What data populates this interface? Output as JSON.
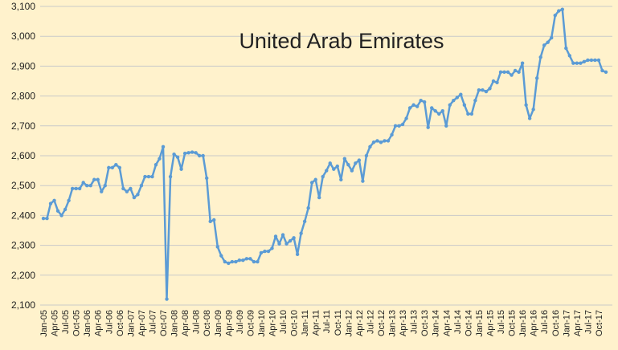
{
  "chart_data": {
    "type": "line",
    "title": "United Arab Emirates",
    "categories": [
      "Jan-05",
      null,
      null,
      "Apr-05",
      null,
      null,
      "Jul-05",
      null,
      null,
      "Oct-05",
      null,
      null,
      "Jan-06",
      null,
      null,
      "Apr-06",
      null,
      null,
      "Jul-06",
      null,
      null,
      "Oct-06",
      null,
      null,
      "Jan-07",
      null,
      null,
      "Apr-07",
      null,
      null,
      "Jul-07",
      null,
      null,
      "Oct-07",
      null,
      null,
      "Jan-08",
      null,
      null,
      "Apr-08",
      null,
      null,
      "Jul-08",
      null,
      null,
      "Oct-08",
      null,
      null,
      "Jan-09",
      null,
      null,
      "Apr-09",
      null,
      null,
      "Jul-09",
      null,
      null,
      "Oct-09",
      null,
      null,
      "Jan-10",
      null,
      null,
      "Apr-10",
      null,
      null,
      "Jul-10",
      null,
      null,
      "Oct-10",
      null,
      null,
      "Jan-11",
      null,
      null,
      "Apr-11",
      null,
      null,
      "Jul-11",
      null,
      null,
      "Oct-11",
      null,
      null,
      "Jan-12",
      null,
      null,
      "Apr-12",
      null,
      null,
      "Jul-12",
      null,
      null,
      "Oct-12",
      null,
      null,
      "Jan-13",
      null,
      null,
      "Apr-13",
      null,
      null,
      "Jul-13",
      null,
      null,
      "Oct-13",
      null,
      null,
      "Jan-14",
      null,
      null,
      "Apr-14",
      null,
      null,
      "Jul-14",
      null,
      null,
      "Oct-14",
      null,
      null,
      "Jan-15",
      null,
      null,
      "Apr-15",
      null,
      null,
      "Jul-15",
      null,
      null,
      "Oct-15",
      null,
      null,
      "Jan-16",
      null,
      null,
      "Apr-16",
      null,
      null,
      "Jul-16",
      null,
      null,
      "Oct-16",
      null,
      null,
      "Jan-17",
      null,
      null,
      "Apr-17",
      null,
      null,
      "Jul-17",
      null,
      null,
      "Oct-17",
      null,
      null
    ],
    "values": [
      2390,
      2390,
      2440,
      2450,
      2415,
      2400,
      2420,
      2450,
      2490,
      2490,
      2490,
      2510,
      2500,
      2500,
      2520,
      2520,
      2480,
      2500,
      2560,
      2560,
      2570,
      2560,
      2490,
      2480,
      2490,
      2460,
      2470,
      2500,
      2530,
      2530,
      2530,
      2570,
      2590,
      2630,
      2120,
      2530,
      2605,
      2595,
      2555,
      2608,
      2610,
      2612,
      2610,
      2600,
      2600,
      2525,
      2380,
      2385,
      2295,
      2265,
      2245,
      2240,
      2245,
      2245,
      2250,
      2250,
      2255,
      2255,
      2245,
      2245,
      2275,
      2280,
      2280,
      2290,
      2330,
      2305,
      2335,
      2305,
      2315,
      2325,
      2270,
      2340,
      2380,
      2425,
      2510,
      2520,
      2460,
      2530,
      2550,
      2575,
      2555,
      2565,
      2520,
      2590,
      2570,
      2550,
      2575,
      2585,
      2515,
      2600,
      2630,
      2645,
      2650,
      2645,
      2650,
      2650,
      2670,
      2700,
      2700,
      2705,
      2725,
      2760,
      2770,
      2765,
      2785,
      2780,
      2695,
      2760,
      2750,
      2740,
      2750,
      2700,
      2770,
      2785,
      2795,
      2805,
      2770,
      2740,
      2740,
      2785,
      2820,
      2820,
      2815,
      2825,
      2850,
      2845,
      2880,
      2880,
      2880,
      2870,
      2885,
      2880,
      2910,
      2770,
      2725,
      2755,
      2860,
      2930,
      2970,
      2980,
      2995,
      3070,
      3085,
      3090,
      2960,
      2935,
      2910,
      2910,
      2910,
      2915,
      2920,
      2920,
      2920,
      2920,
      2885,
      2880
    ],
    "color": "#5b9bd5",
    "ylim": [
      2100,
      3100
    ],
    "yticks": [
      {
        "value": 2100,
        "label": "2,100"
      },
      {
        "value": 2200,
        "label": "2,200"
      },
      {
        "value": 2300,
        "label": "2,300"
      },
      {
        "value": 2400,
        "label": "2,400"
      },
      {
        "value": 2500,
        "label": "2,500"
      },
      {
        "value": 2600,
        "label": "2,600"
      },
      {
        "value": 2700,
        "label": "2,700"
      },
      {
        "value": 2800,
        "label": "2,800"
      },
      {
        "value": 2900,
        "label": "2,900"
      },
      {
        "value": 3000,
        "label": "3,000"
      },
      {
        "value": 3100,
        "label": "3,100"
      }
    ],
    "grid": true
  }
}
